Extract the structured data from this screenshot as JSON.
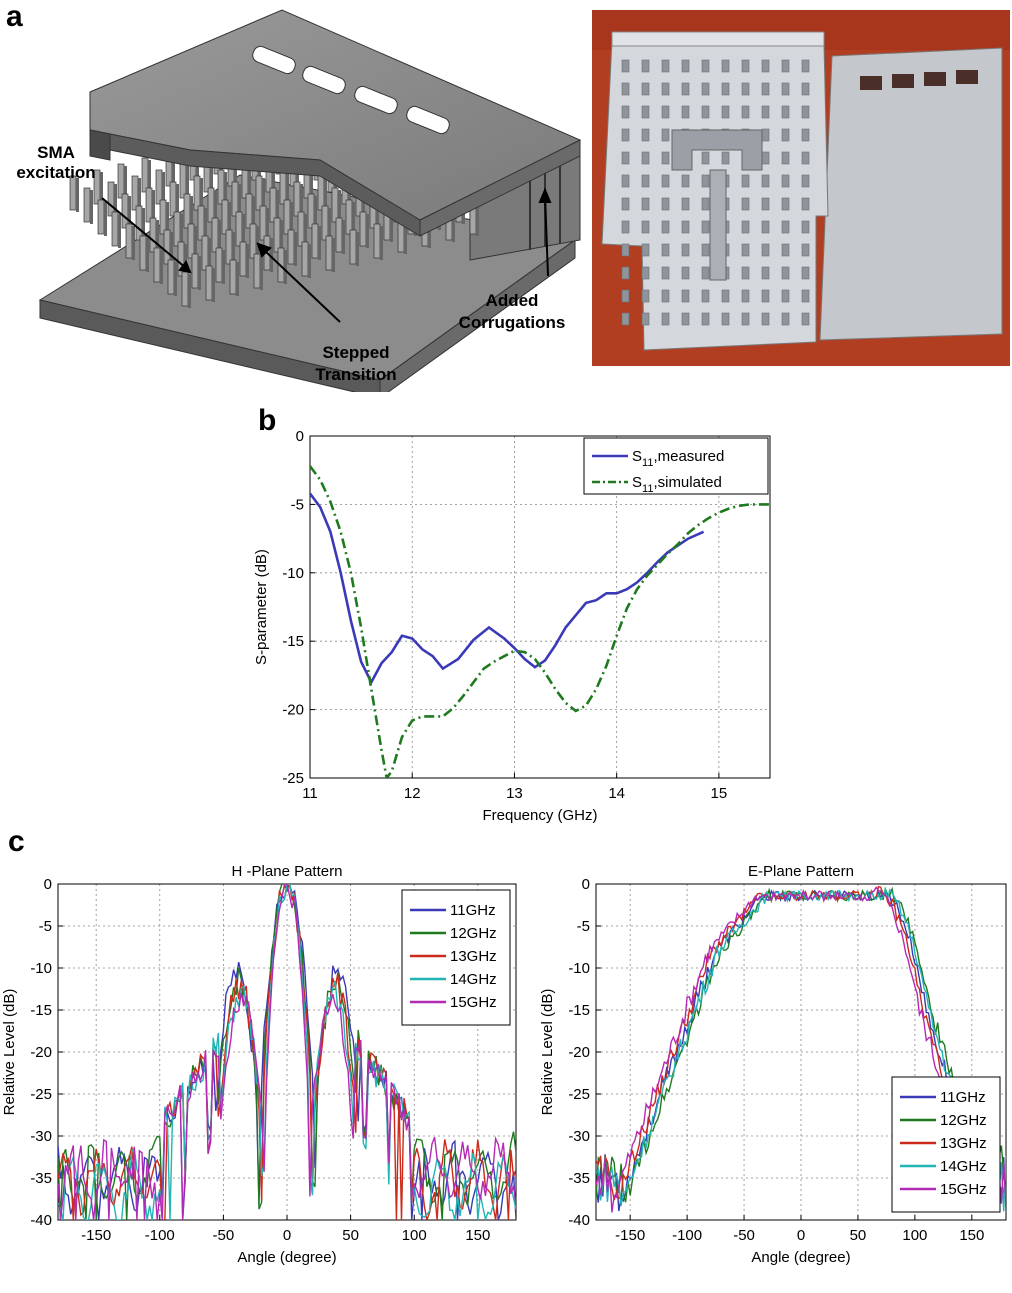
{
  "panels": {
    "a": "a",
    "b": "b",
    "c": "c"
  },
  "figure_a": {
    "callouts": {
      "sma": [
        "SMA",
        "excitation"
      ],
      "corrugations": [
        "Added",
        "Corrugations"
      ],
      "stepped": [
        "Stepped",
        "Transition"
      ]
    },
    "colors": {
      "metal_top": "#8a8a8a",
      "metal_side": "#5c5c5c",
      "photo_bg": "#b03a1f",
      "aluminum": "#c8ccd0"
    }
  },
  "chart_data": [
    {
      "id": "b",
      "type": "line",
      "xlabel": "Frequency (GHz)",
      "ylabel": "S-parameter (dB)",
      "xlim": [
        11,
        15.5
      ],
      "ylim": [
        -25,
        0
      ],
      "xticks": [
        11,
        12,
        13,
        14,
        15
      ],
      "yticks": [
        0,
        -5,
        -10,
        -15,
        -20,
        -25
      ],
      "grid": true,
      "legend_position": "top-right",
      "series": [
        {
          "name": "S11,measured",
          "label_main": "S",
          "label_sub": "11",
          "label_rest": ",measured",
          "color": "#3a3ab8",
          "dash": "solid",
          "x": [
            11.0,
            11.1,
            11.2,
            11.3,
            11.4,
            11.5,
            11.6,
            11.7,
            11.8,
            11.9,
            12.0,
            12.1,
            12.2,
            12.3,
            12.45,
            12.6,
            12.75,
            12.9,
            13.0,
            13.1,
            13.2,
            13.3,
            13.4,
            13.5,
            13.6,
            13.7,
            13.8,
            13.9,
            14.0,
            14.1,
            14.2,
            14.3,
            14.4,
            14.5,
            14.6,
            14.7,
            14.85
          ],
          "y": [
            -4.2,
            -5.2,
            -7.0,
            -10.0,
            -13.5,
            -16.5,
            -18.0,
            -16.6,
            -15.8,
            -14.6,
            -14.8,
            -15.6,
            -16.1,
            -17.0,
            -16.3,
            -14.9,
            -14.0,
            -14.8,
            -15.5,
            -16.3,
            -16.9,
            -16.4,
            -15.3,
            -14.0,
            -13.1,
            -12.2,
            -12.0,
            -11.5,
            -11.5,
            -11.2,
            -10.7,
            -10.0,
            -9.2,
            -8.5,
            -8.0,
            -7.5,
            -7.0
          ]
        },
        {
          "name": "S11,simulated",
          "label_main": "S",
          "label_sub": "11",
          "label_rest": ",simulated",
          "color": "#1f7a1f",
          "dash": "dashdot",
          "x": [
            11.0,
            11.1,
            11.2,
            11.3,
            11.4,
            11.5,
            11.6,
            11.7,
            11.75,
            11.8,
            11.9,
            12.0,
            12.1,
            12.2,
            12.3,
            12.4,
            12.5,
            12.6,
            12.7,
            12.8,
            12.9,
            13.0,
            13.1,
            13.2,
            13.3,
            13.4,
            13.5,
            13.6,
            13.7,
            13.8,
            13.9,
            14.0,
            14.1,
            14.2,
            14.3,
            14.4,
            14.5,
            14.6,
            14.7,
            14.8,
            14.9,
            15.0,
            15.1,
            15.2,
            15.3,
            15.5
          ],
          "y": [
            -2.2,
            -3.2,
            -4.8,
            -7.0,
            -10.0,
            -14.0,
            -18.5,
            -23.0,
            -25.0,
            -24.5,
            -22.0,
            -20.8,
            -20.5,
            -20.5,
            -20.5,
            -19.9,
            -19.0,
            -18.0,
            -17.0,
            -16.5,
            -16.1,
            -15.7,
            -15.8,
            -16.3,
            -17.3,
            -18.5,
            -19.5,
            -20.1,
            -19.7,
            -18.5,
            -16.8,
            -14.6,
            -12.6,
            -11.2,
            -10.2,
            -9.4,
            -8.6,
            -7.9,
            -7.1,
            -6.5,
            -6.0,
            -5.6,
            -5.3,
            -5.1,
            -5.0,
            -5.0
          ]
        }
      ]
    },
    {
      "id": "c-h",
      "type": "line",
      "title": "H -Plane Pattern",
      "xlabel": "Angle (degree)",
      "ylabel": "Relative Level (dB)",
      "xlim": [
        -180,
        180
      ],
      "ylim": [
        -40,
        0
      ],
      "xticks": [
        -150,
        -100,
        -50,
        0,
        50,
        100,
        150
      ],
      "yticks": [
        0,
        -5,
        -10,
        -15,
        -20,
        -25,
        -30,
        -35,
        -40
      ],
      "grid": true,
      "legend_position": "top-right",
      "series": [
        {
          "name": "11GHz",
          "color": "#3a3ab8",
          "null": 22,
          "side_lobe": -10.5,
          "edge": -35
        },
        {
          "name": "12GHz",
          "color": "#1f7a1f",
          "null": 21,
          "side_lobe": -11.5,
          "edge": -34
        },
        {
          "name": "13GHz",
          "color": "#cc2a1a",
          "null": 20,
          "side_lobe": -12.0,
          "edge": -35
        },
        {
          "name": "14GHz",
          "color": "#22b5b5",
          "null": 19,
          "side_lobe": -13.0,
          "edge": -36
        },
        {
          "name": "15GHz",
          "color": "#b52ab5",
          "null": 18,
          "side_lobe": -13.5,
          "edge": -34
        }
      ]
    },
    {
      "id": "c-e",
      "type": "line",
      "title": "E-Plane Pattern",
      "xlabel": "Angle (degree)",
      "ylabel": "Relative Level (dB)",
      "xlim": [
        -180,
        180
      ],
      "ylim": [
        -40,
        0
      ],
      "xticks": [
        -150,
        -100,
        -50,
        0,
        50,
        100,
        150
      ],
      "yticks": [
        0,
        -5,
        -10,
        -15,
        -20,
        -25,
        -30,
        -35,
        -40
      ],
      "grid": true,
      "legend_position": "bottom-right",
      "series": [
        {
          "name": "11GHz",
          "color": "#3a3ab8",
          "plateau": 0,
          "shift": 0
        },
        {
          "name": "12GHz",
          "color": "#1f7a1f",
          "plateau": 0,
          "shift": 4
        },
        {
          "name": "13GHz",
          "color": "#cc2a1a",
          "plateau": 0,
          "shift": -3
        },
        {
          "name": "14GHz",
          "color": "#22b5b5",
          "plateau": 0,
          "shift": 2
        },
        {
          "name": "15GHz",
          "color": "#b52ab5",
          "plateau": 0,
          "shift": -6
        }
      ]
    }
  ]
}
